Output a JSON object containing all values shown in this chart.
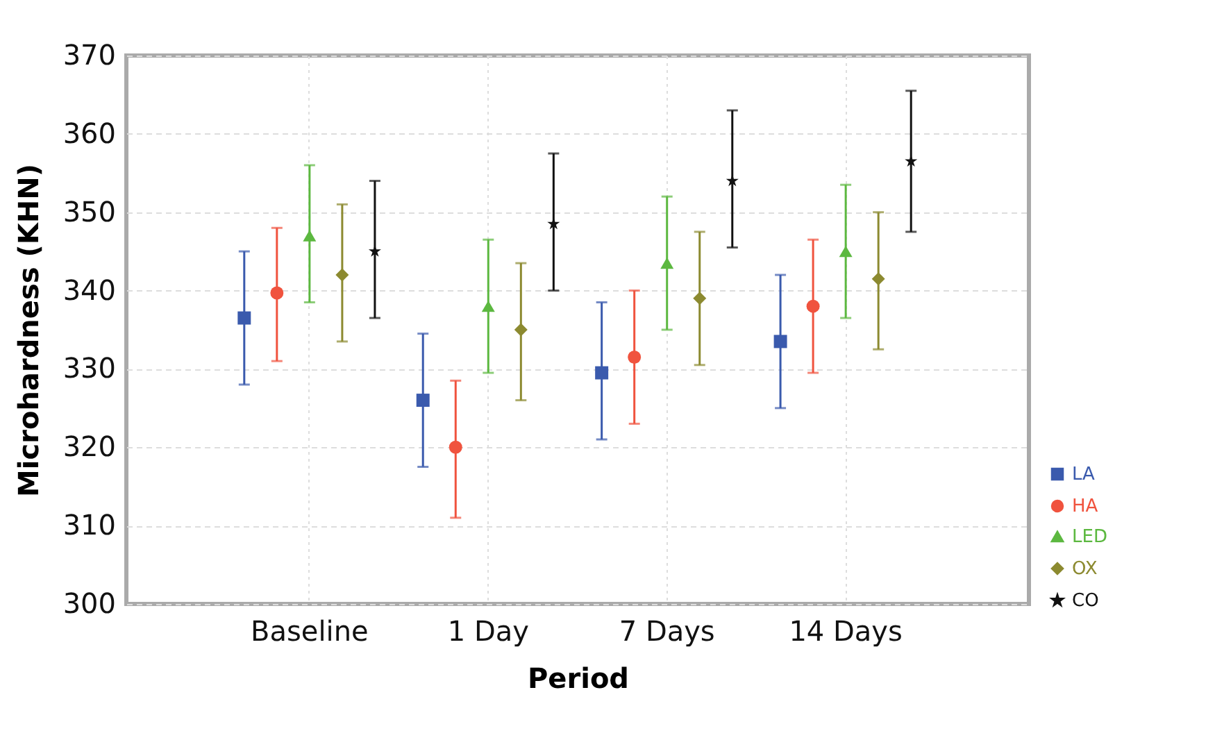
{
  "chart_data": {
    "type": "scatter",
    "xlabel": "Period",
    "ylabel": "Microhardness (KHN)",
    "categories": [
      "Baseline",
      "1 Day",
      "7 Days",
      "14 Days"
    ],
    "ylim": [
      300,
      370
    ],
    "yticks": [
      300,
      310,
      320,
      330,
      340,
      350,
      360,
      370
    ],
    "grid": true,
    "legend": "bottom right",
    "series": [
      {
        "name": "LA",
        "color": "#3a5aad",
        "marker": "square",
        "values": [
          336.5,
          326,
          329.5,
          333.5
        ],
        "errors": [
          [
            328,
            345
          ],
          [
            317.5,
            334.5
          ],
          [
            321,
            338.5
          ],
          [
            325,
            342
          ]
        ]
      },
      {
        "name": "HA",
        "color": "#f0533e",
        "marker": "circle",
        "values": [
          339.7,
          320,
          331.5,
          338
        ],
        "errors": [
          [
            331,
            348
          ],
          [
            311,
            328.5
          ],
          [
            323,
            340
          ],
          [
            329.5,
            346.5
          ]
        ]
      },
      {
        "name": "LED",
        "color": "#5cb840",
        "marker": "triangle",
        "values": [
          347,
          338,
          343.5,
          345
        ],
        "errors": [
          [
            338.5,
            356
          ],
          [
            329.5,
            346.5
          ],
          [
            335,
            352
          ],
          [
            336.5,
            353.5
          ]
        ]
      },
      {
        "name": "OX",
        "color": "#8c8a30",
        "marker": "diamond",
        "values": [
          342,
          335,
          339,
          341.5
        ],
        "errors": [
          [
            333.5,
            351
          ],
          [
            326,
            343.5
          ],
          [
            330.5,
            347.5
          ],
          [
            332.5,
            350
          ]
        ]
      },
      {
        "name": "CO",
        "color": "#111111",
        "marker": "star",
        "values": [
          345,
          348.5,
          354,
          356.5
        ],
        "errors": [
          [
            336.5,
            354
          ],
          [
            340,
            357.5
          ],
          [
            345.5,
            363
          ],
          [
            347.5,
            365.5
          ]
        ]
      }
    ]
  }
}
